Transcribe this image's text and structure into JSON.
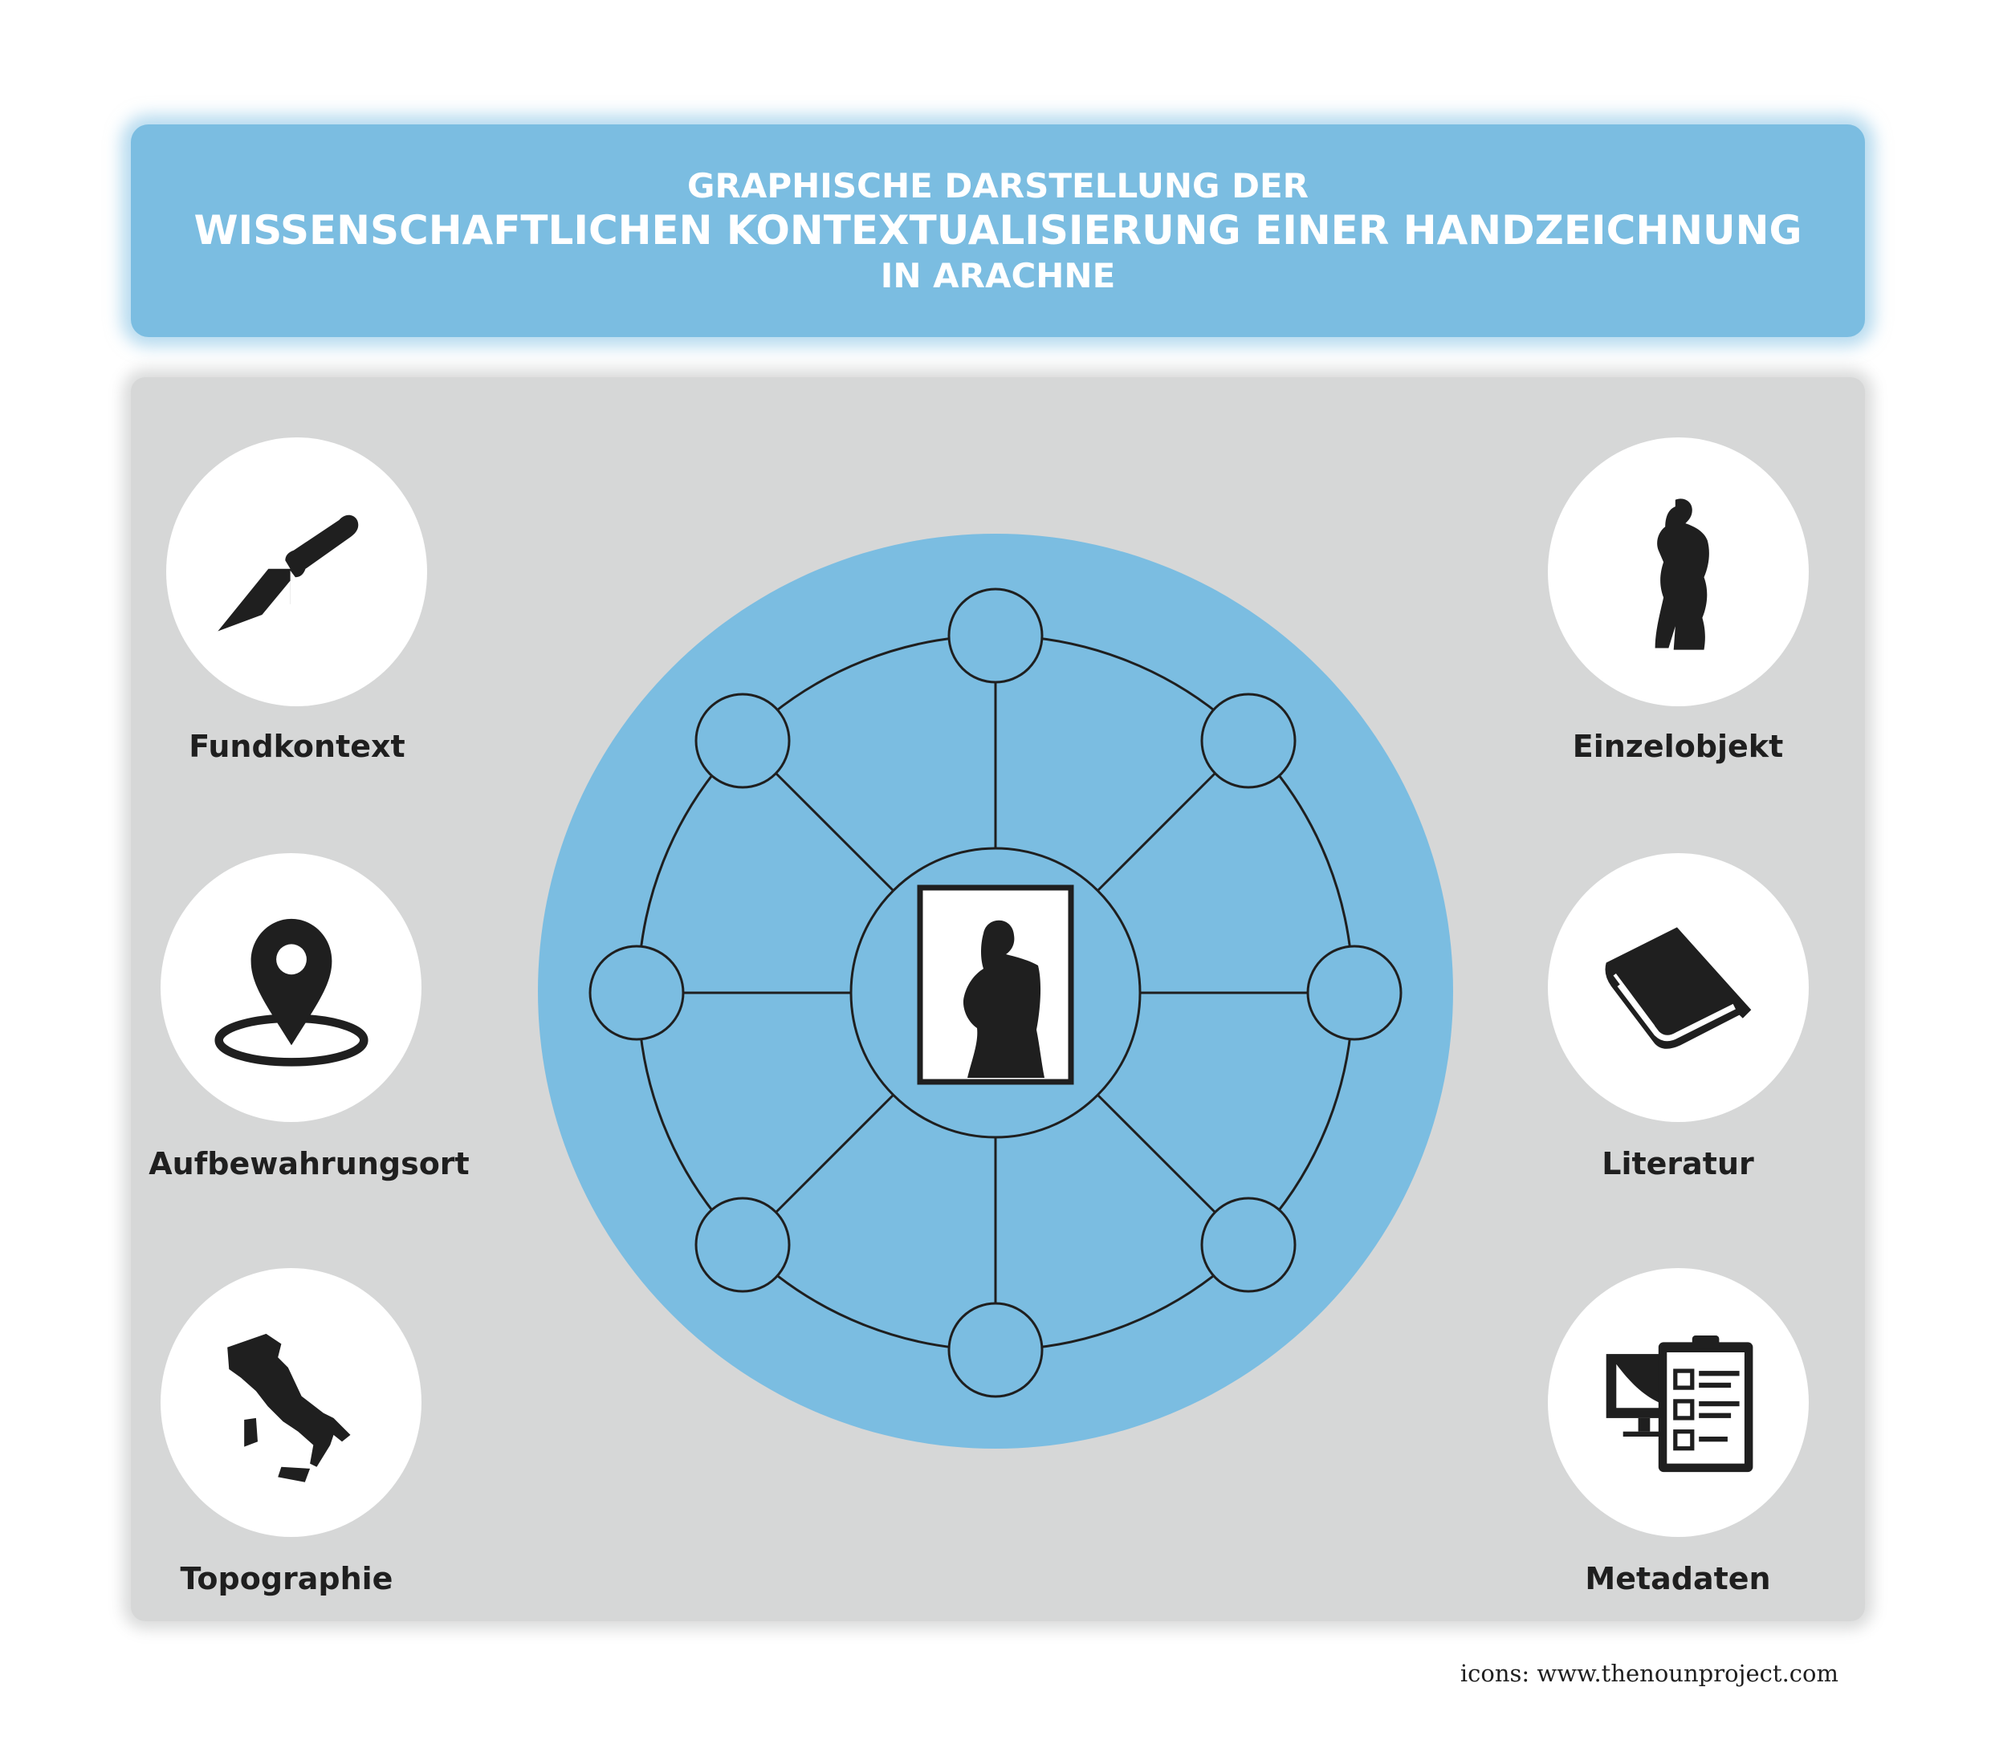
{
  "title": {
    "line1": "GRAPHISCHE DARSTELLUNG DER",
    "line2": "WISSENSCHAFTLICHEN KONTEXTUALISIERUNG EINER HANDZEICHNUNG",
    "line3": "IN ARACHNE"
  },
  "categories": {
    "left": [
      {
        "label": "Fundkontext",
        "icon": "trowel-icon"
      },
      {
        "label": "Aufbewahrungsort",
        "icon": "location-pin-icon"
      },
      {
        "label": "Topographie",
        "icon": "italy-map-icon"
      }
    ],
    "right": [
      {
        "label": "Einzelobjekt",
        "icon": "statue-icon"
      },
      {
        "label": "Literatur",
        "icon": "book-icon"
      },
      {
        "label": "Metadaten",
        "icon": "metadata-icon"
      }
    ]
  },
  "center": {
    "icon": "drawing-frame-icon",
    "outer_nodes": 8
  },
  "credit": "icons: www.thenounproject.com",
  "colors": {
    "accent": "#7bbde1",
    "panel": "#d6d7d7",
    "ink": "#1f1f1f"
  }
}
